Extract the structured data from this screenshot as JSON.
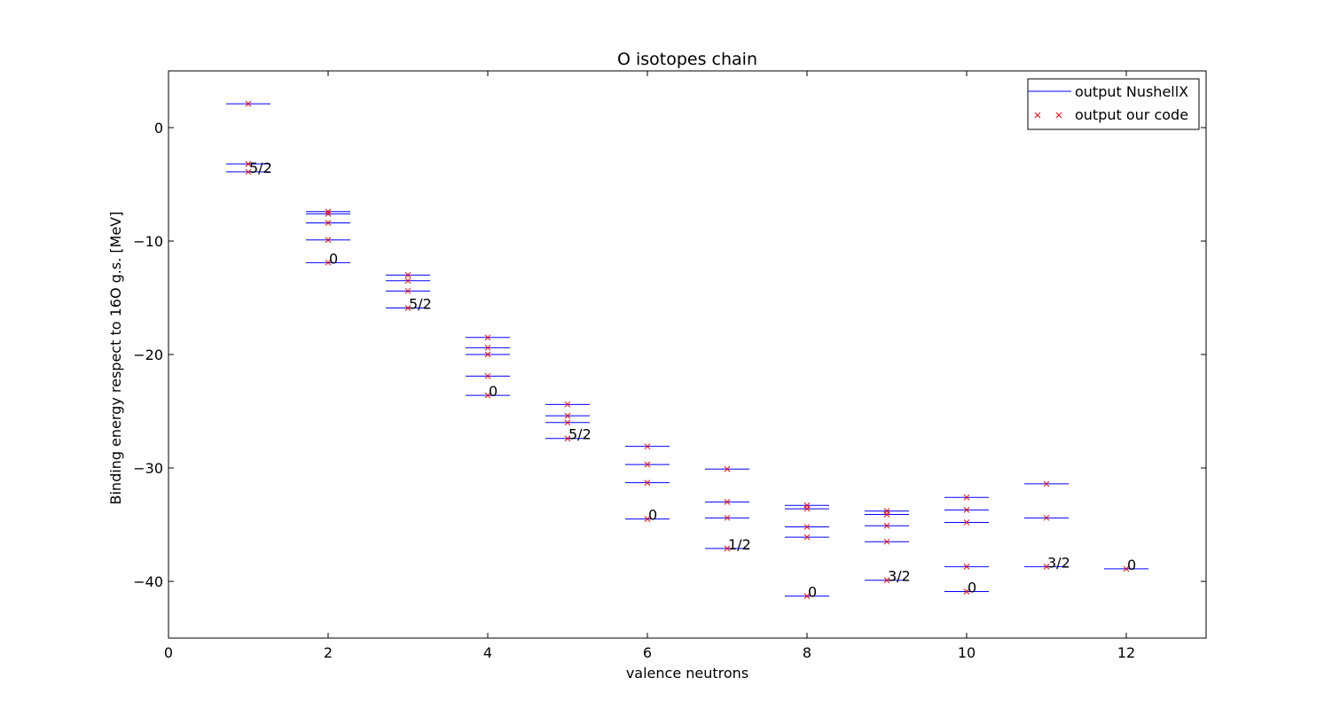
{
  "chart_data": {
    "type": "scatter",
    "title": "O isotopes chain",
    "xlabel": "valence neutrons",
    "ylabel": "Binding energy respect to 16O g.s. [MeV]",
    "xlim": [
      0,
      13
    ],
    "ylim": [
      -45,
      5
    ],
    "xticks": [
      0,
      2,
      4,
      6,
      8,
      10,
      12
    ],
    "yticks": [
      0,
      -10,
      -20,
      -30,
      -40
    ],
    "grid": false,
    "legend_position": "top-right",
    "series": [
      {
        "name": "output NushellX",
        "marker": "hline",
        "color": "#0000ff"
      },
      {
        "name": "output our code",
        "marker": "x",
        "color": "#ff0000"
      }
    ],
    "levels": [
      {
        "x": 1,
        "energies": [
          2.1,
          -3.2,
          -3.9
        ]
      },
      {
        "x": 2,
        "energies": [
          -7.4,
          -7.6,
          -8.4,
          -9.9,
          -11.9
        ]
      },
      {
        "x": 3,
        "energies": [
          -13.0,
          -13.5,
          -14.4,
          -15.9
        ]
      },
      {
        "x": 4,
        "energies": [
          -18.5,
          -19.4,
          -20.0,
          -21.9,
          -23.6
        ]
      },
      {
        "x": 5,
        "energies": [
          -24.4,
          -25.4,
          -26.0,
          -27.4
        ]
      },
      {
        "x": 6,
        "energies": [
          -28.1,
          -29.7,
          -31.3,
          -34.5
        ]
      },
      {
        "x": 7,
        "energies": [
          -30.1,
          -33.0,
          -34.4,
          -37.1
        ]
      },
      {
        "x": 8,
        "energies": [
          -33.3,
          -33.6,
          -35.2,
          -36.1,
          -41.3
        ]
      },
      {
        "x": 9,
        "energies": [
          -33.8,
          -34.1,
          -35.1,
          -36.5,
          -39.9
        ]
      },
      {
        "x": 10,
        "energies": [
          -32.6,
          -33.7,
          -34.8,
          -38.7,
          -40.9
        ]
      },
      {
        "x": 11,
        "energies": [
          -31.4,
          -34.4,
          -38.7
        ]
      },
      {
        "x": 12,
        "energies": [
          -38.9
        ]
      }
    ],
    "annotations": [
      {
        "x": 1,
        "y": -3.9,
        "text": "5/2"
      },
      {
        "x": 2,
        "y": -11.9,
        "text": "0"
      },
      {
        "x": 3,
        "y": -15.9,
        "text": "5/2"
      },
      {
        "x": 4,
        "y": -23.6,
        "text": "0"
      },
      {
        "x": 5,
        "y": -27.4,
        "text": "5/2"
      },
      {
        "x": 6,
        "y": -34.5,
        "text": "0"
      },
      {
        "x": 7,
        "y": -37.1,
        "text": "1/2"
      },
      {
        "x": 8,
        "y": -41.3,
        "text": "0"
      },
      {
        "x": 9,
        "y": -39.9,
        "text": "3/2"
      },
      {
        "x": 10,
        "y": -40.9,
        "text": "0"
      },
      {
        "x": 11,
        "y": -38.7,
        "text": "3/2"
      },
      {
        "x": 12,
        "y": -38.9,
        "text": "0"
      }
    ]
  }
}
